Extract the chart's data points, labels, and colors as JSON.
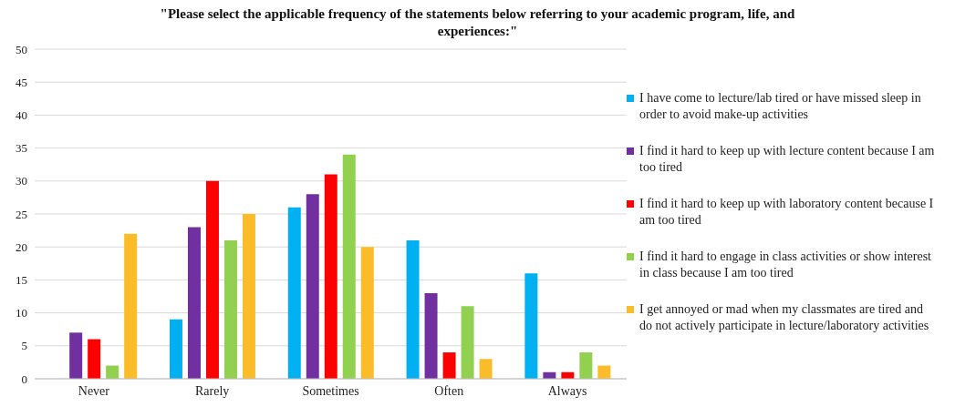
{
  "chart_data": {
    "type": "bar",
    "title": "\"Please select the applicable frequency of the statements below referring to your academic program, life, and experiences:\"",
    "categories": [
      "Never",
      "Rarely",
      "Sometimes",
      "Often",
      "Always"
    ],
    "series": [
      {
        "name": "I have come to lecture/lab tired or have missed sleep in order to avoid make-up activities",
        "color": "#00b0f0",
        "values": [
          0,
          9,
          26,
          21,
          16
        ]
      },
      {
        "name": "I find it hard to keep up with lecture content because I am too tired",
        "color": "#7030a0",
        "values": [
          7,
          23,
          28,
          13,
          1
        ]
      },
      {
        "name": "I find it hard to keep up with laboratory content because I am too tired",
        "color": "#ff0000",
        "values": [
          6,
          30,
          31,
          4,
          1
        ]
      },
      {
        "name": "I find it hard to engage in class activities or show interest in class because I am too tired",
        "color": "#92d050",
        "values": [
          2,
          21,
          34,
          11,
          4
        ]
      },
      {
        "name": "I get annoyed or mad when my classmates are tired and do not actively participate in lecture/laboratory activities",
        "color": "#fbbc2a",
        "values": [
          22,
          25,
          20,
          3,
          2
        ]
      }
    ],
    "ylim": [
      0,
      50
    ],
    "yticks": [
      0,
      5,
      10,
      15,
      20,
      25,
      30,
      35,
      40,
      45,
      50
    ],
    "grid": "y",
    "legend": "right"
  }
}
